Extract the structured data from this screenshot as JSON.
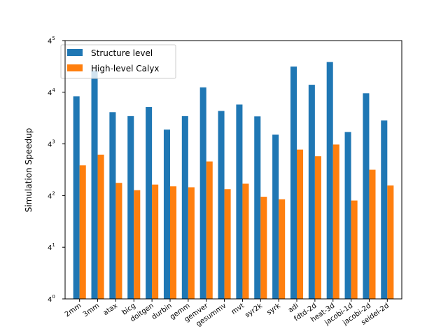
{
  "chart_data": {
    "type": "bar",
    "title": "",
    "xlabel": "",
    "ylabel": "Simulation Speedup",
    "yscale": "log4",
    "ylim": [
      1,
      1024
    ],
    "y_ticks": [
      {
        "value": 1,
        "base": "4",
        "exp": "0"
      },
      {
        "value": 4,
        "base": "4",
        "exp": "1"
      },
      {
        "value": 16,
        "base": "4",
        "exp": "2"
      },
      {
        "value": 64,
        "base": "4",
        "exp": "3"
      },
      {
        "value": 256,
        "base": "4",
        "exp": "4"
      },
      {
        "value": 1024,
        "base": "4",
        "exp": "5"
      }
    ],
    "grid": false,
    "legend_position": "top-left",
    "categories": [
      "2mm",
      "3mm",
      "atax",
      "bicg",
      "doitgen",
      "durbin",
      "gemm",
      "gemver",
      "gesummv",
      "mvt",
      "syr2k",
      "syrk",
      "adi",
      "fdtd-2d",
      "heat-3d",
      "jacobi-1d",
      "jacobi-2d",
      "seidel-2d"
    ],
    "series": [
      {
        "name": "Structure level",
        "color": "#1f77b4",
        "values": [
          230,
          460,
          150,
          135,
          172,
          94,
          135,
          292,
          155,
          184,
          134,
          82,
          510,
          313,
          576,
          88,
          249,
          120
        ]
      },
      {
        "name": "High-level Calyx",
        "color": "#ff7f0e",
        "values": [
          36,
          48,
          22.5,
          18.5,
          21.5,
          20.5,
          20,
          40,
          19,
          22,
          15.5,
          14.5,
          55,
          46,
          63,
          14,
          32,
          21
        ]
      }
    ]
  }
}
